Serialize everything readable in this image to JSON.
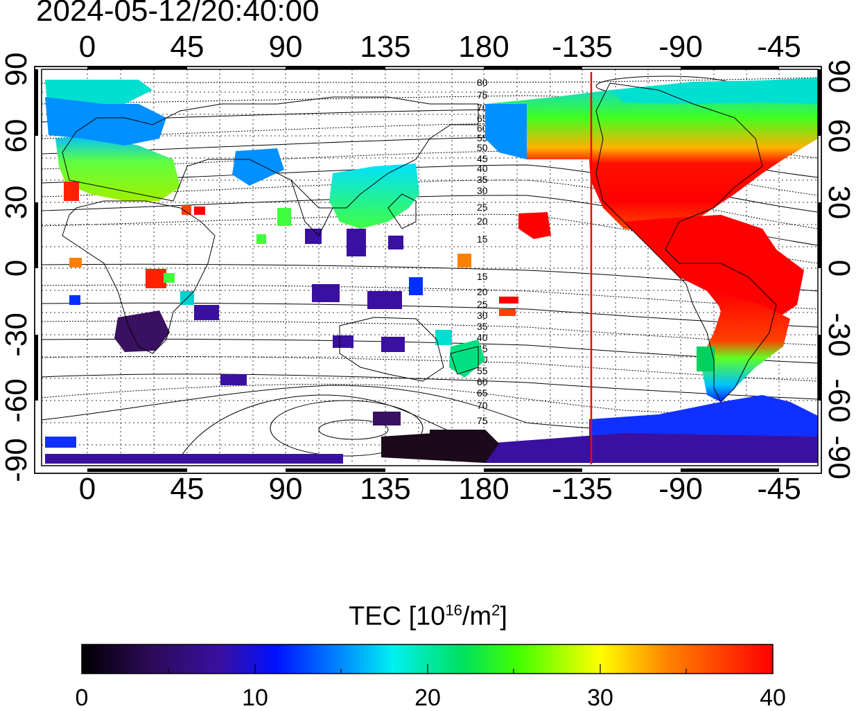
{
  "title": "2024-05-12/20:40:00",
  "longitude_ticks": [
    "0",
    "45",
    "90",
    "135",
    "180",
    "-135",
    "-90",
    "-45"
  ],
  "latitude_ticks": [
    "90",
    "60",
    "30",
    "0",
    "-30",
    "-60",
    "-90"
  ],
  "contour_labels": [
    "80",
    "75",
    "70",
    "65",
    "60",
    "55",
    "50",
    "45",
    "40",
    "35",
    "30",
    "25",
    "20",
    "15"
  ],
  "colorbar": {
    "title_prefix": "TEC  [10",
    "title_exp1": "16",
    "title_mid": "/m",
    "title_exp2": "2",
    "title_suffix": "]",
    "ticks": [
      "0",
      "10",
      "20",
      "30",
      "40"
    ],
    "min": 0,
    "max": 40
  },
  "marker_line": {
    "longitude": -138,
    "color": "#ff0000"
  },
  "colors": {
    "high": "#ff0000",
    "mid": "#00ff00",
    "low": "#0000ff",
    "none": "#1a0a1a"
  }
}
